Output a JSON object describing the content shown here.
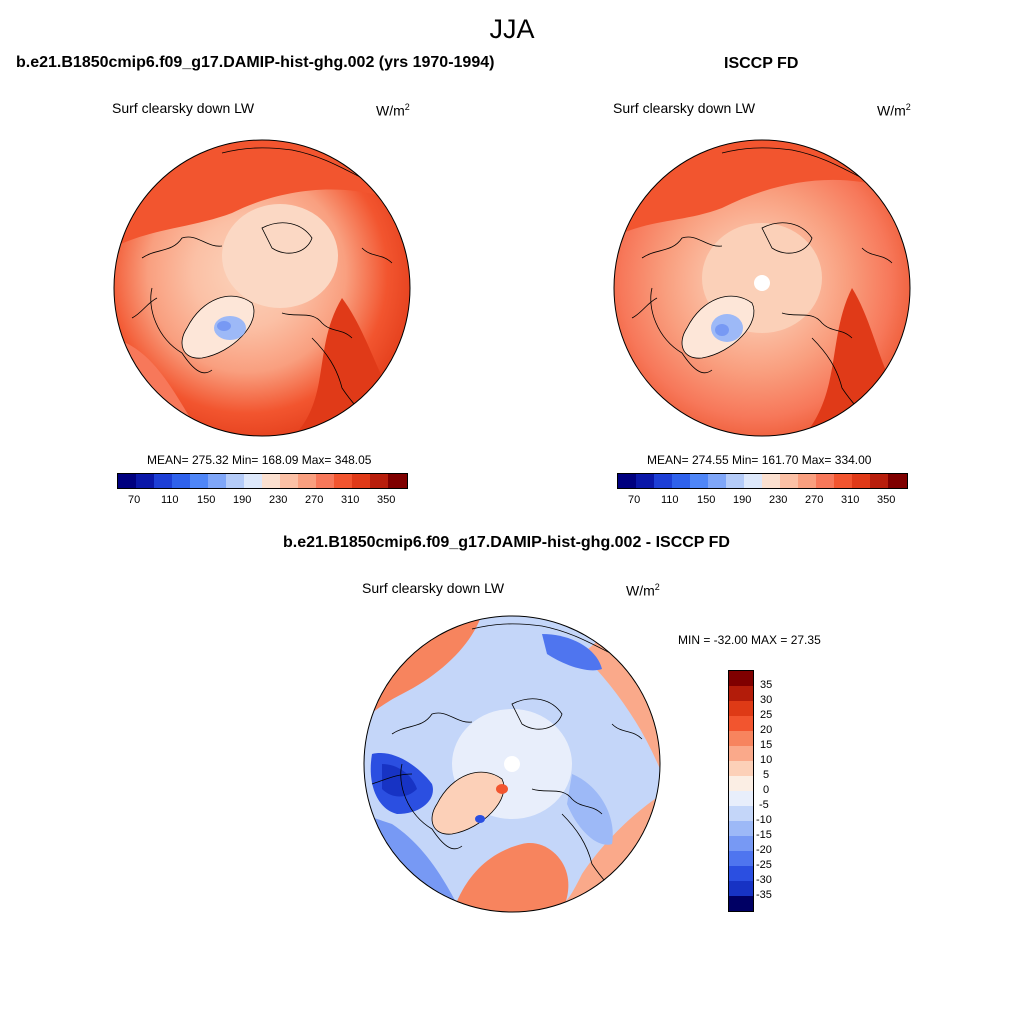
{
  "main_title": "JJA",
  "palettes": {
    "abs": [
      "#00007f",
      "#0a17a8",
      "#1d3fd6",
      "#2f62ec",
      "#4f86f7",
      "#7fa6f8",
      "#b4cbf8",
      "#dde8fb",
      "#fbe0d0",
      "#fbc0a5",
      "#f99f7f",
      "#f7785a",
      "#f2552f",
      "#e03a18",
      "#b81e0c",
      "#7f0000"
    ],
    "diff": [
      "#7f0000",
      "#b31c0a",
      "#de3a16",
      "#f2552f",
      "#f7845e",
      "#faa98a",
      "#fcd0b8",
      "#e8eefb",
      "#c4d6f9",
      "#9db9f7",
      "#7799f4",
      "#4f75ef",
      "#2b4fe1",
      "#1733c4",
      "#06178e",
      "#000064"
    ]
  },
  "panels": {
    "left": {
      "title": "b.e21.B1850cmip6.f09_g17.DAMIP-hist-ghg.002 (yrs 1970-1994)",
      "variable": "Surf clearsky down LW",
      "units": "W/m",
      "units_exp": "2",
      "stats": "MEAN= 275.32  Min= 168.09  Max= 348.05",
      "colorbar_labels": [
        "70",
        "110",
        "150",
        "190",
        "230",
        "270",
        "310",
        "350"
      ]
    },
    "right": {
      "title": "ISCCP FD",
      "variable": "Surf clearsky down LW",
      "units": "W/m",
      "units_exp": "2",
      "stats": "MEAN= 274.55  Min= 161.70  Max= 334.00",
      "colorbar_labels": [
        "70",
        "110",
        "150",
        "190",
        "230",
        "270",
        "310",
        "350"
      ]
    },
    "diff": {
      "title": "b.e21.B1850cmip6.f09_g17.DAMIP-hist-ghg.002 - ISCCP FD",
      "variable": "Surf clearsky down LW",
      "units": "W/m",
      "units_exp": "2",
      "stats": "MIN = -32.00 MAX =  27.35",
      "colorbar_labels": [
        "35",
        "30",
        "25",
        "20",
        "15",
        "10",
        "5",
        "0",
        "-5",
        "-10",
        "-15",
        "-20",
        "-25",
        "-30",
        "-35"
      ]
    }
  }
}
